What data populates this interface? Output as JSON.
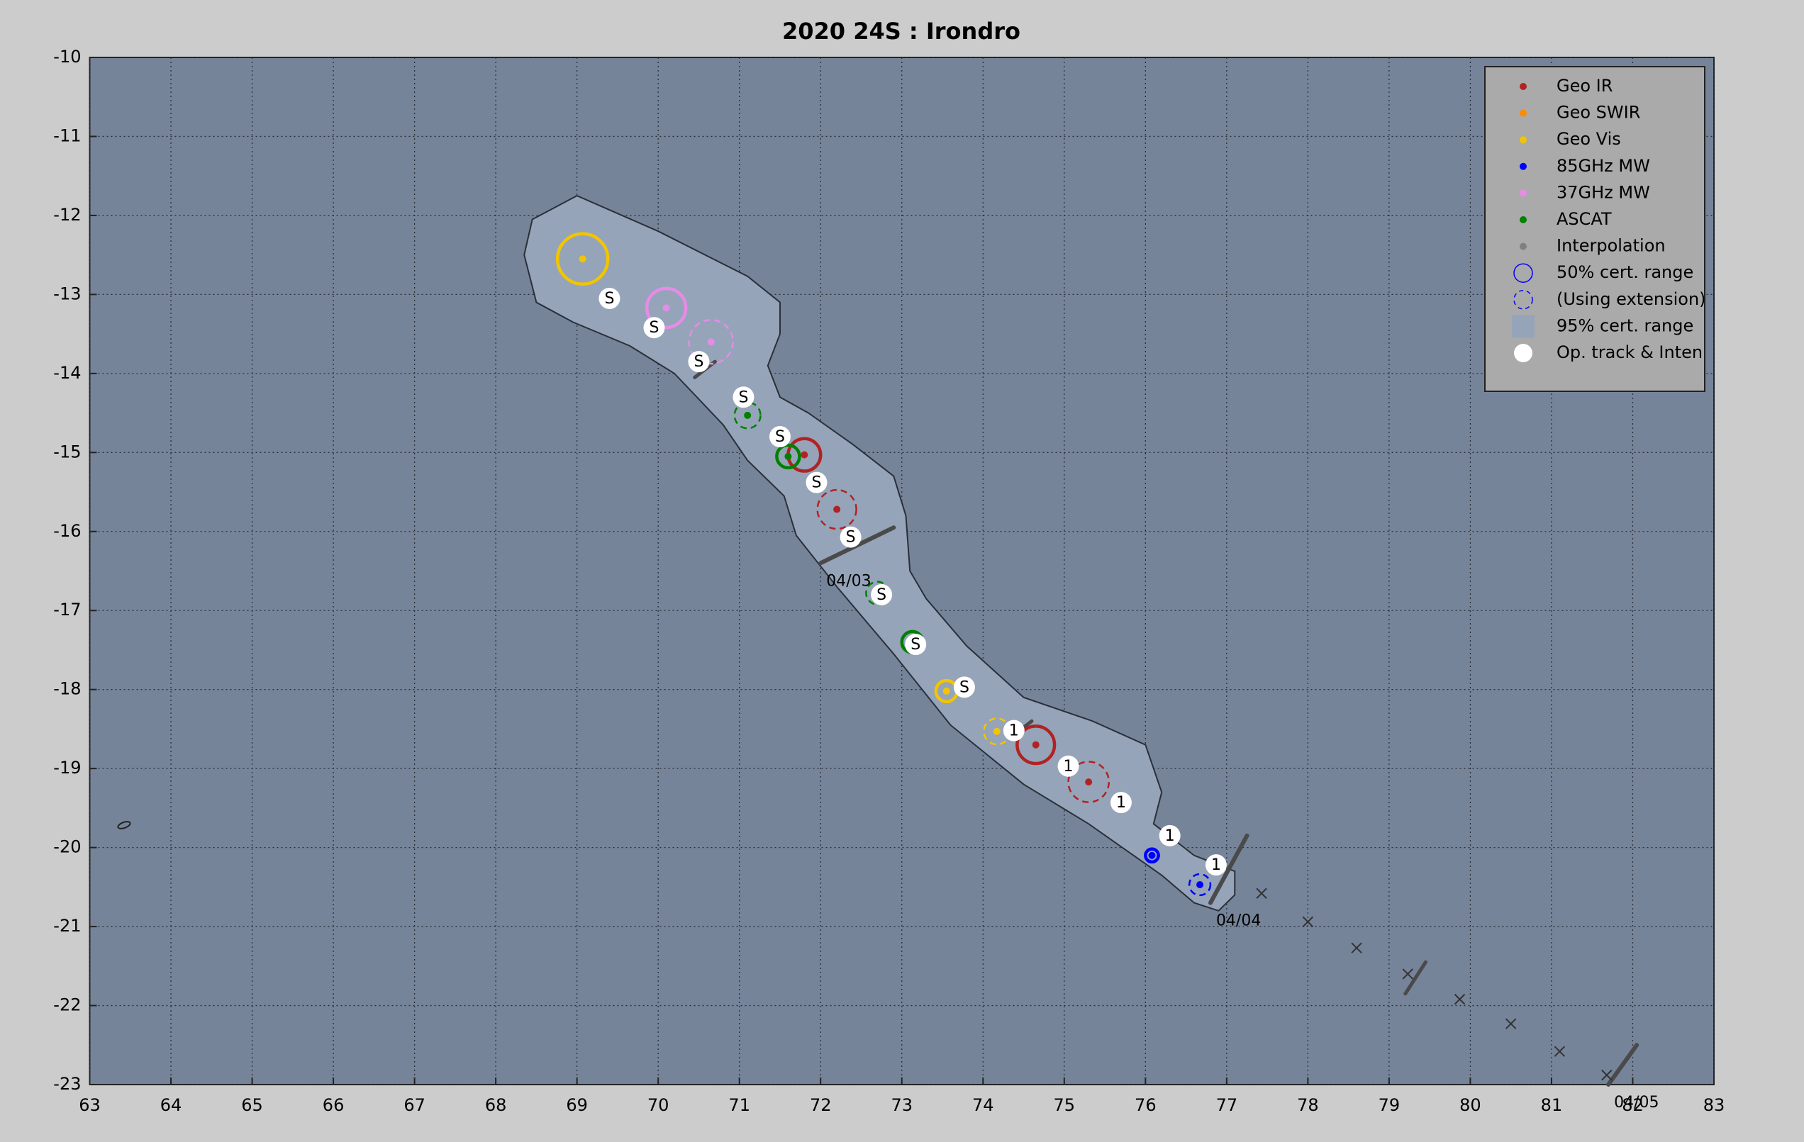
{
  "chart_data": {
    "type": "track",
    "title": "2020  24S :  Irondro",
    "xlim": [
      63,
      83
    ],
    "ylim": [
      -23,
      -10
    ],
    "xticks": [
      63,
      64,
      65,
      66,
      67,
      68,
      69,
      70,
      71,
      72,
      73,
      74,
      75,
      76,
      77,
      78,
      79,
      80,
      81,
      82,
      83
    ],
    "yticks": [
      -10,
      -11,
      -12,
      -13,
      -14,
      -15,
      -16,
      -17,
      -18,
      -19,
      -20,
      -21,
      -22,
      -23
    ],
    "grid": true,
    "legend_position": "upper right",
    "series": [
      {
        "name": "Geo IR",
        "color": "#b22222",
        "x": [
          71.8,
          72.2,
          74.65,
          75.3
        ],
        "y": [
          -15.03,
          -15.72,
          -18.7,
          -19.17
        ],
        "r": [
          0.2,
          0.24,
          0.23,
          0.25
        ],
        "dashed": [
          false,
          true,
          false,
          true
        ]
      },
      {
        "name": "Geo SWIR",
        "color": "#ff8c00",
        "x": [],
        "y": [],
        "r": [],
        "dashed": []
      },
      {
        "name": "Geo Vis",
        "color": "#f2c500",
        "x": [
          69.07,
          73.55,
          74.17
        ],
        "y": [
          -12.55,
          -18.02,
          -18.53
        ],
        "r": [
          0.31,
          0.13,
          0.16
        ],
        "dashed": [
          false,
          false,
          true
        ]
      },
      {
        "name": "85GHz MW",
        "color": "#0000ff",
        "x": [
          76.08,
          76.67
        ],
        "y": [
          -20.1,
          -20.47
        ],
        "r": [
          0.08,
          0.13
        ],
        "dashed": [
          false,
          true
        ]
      },
      {
        "name": "37GHz MW",
        "color": "#e68ce6",
        "x": [
          70.1,
          70.65
        ],
        "y": [
          -13.17,
          -13.6
        ],
        "r": [
          0.24,
          0.27
        ],
        "dashed": [
          false,
          true
        ]
      },
      {
        "name": "ASCAT",
        "color": "#008000",
        "x": [
          71.1,
          71.6,
          72.7,
          73.13
        ],
        "y": [
          -14.53,
          -15.05,
          -16.78,
          -17.4
        ],
        "r": [
          0.16,
          0.14,
          0.14,
          0.13
        ],
        "dashed": [
          true,
          false,
          true,
          false
        ]
      },
      {
        "name": "Interpolation",
        "color": "#808080",
        "x": [
          77.43,
          78.0,
          78.6,
          79.23,
          79.87,
          80.5,
          81.1,
          81.68
        ],
        "y": [
          -20.58,
          -20.94,
          -21.27,
          -21.6,
          -21.92,
          -22.23,
          -22.58,
          -22.88
        ]
      }
    ],
    "legend_extra": [
      {
        "name": "50% cert. range",
        "symbol": "ring"
      },
      {
        "name": "(Using extension)",
        "symbol": "dashed-ring"
      },
      {
        "name": "95% cert. range",
        "symbol": "square"
      },
      {
        "name": "Op. track & Inten",
        "symbol": "dot"
      }
    ],
    "op_track": {
      "x": [
        69.4,
        69.95,
        70.5,
        71.05,
        71.5,
        71.95,
        72.37,
        72.75,
        73.17,
        73.77,
        74.38,
        75.05,
        75.7,
        76.3,
        76.87
      ],
      "y": [
        -13.05,
        -13.42,
        -13.85,
        -14.3,
        -14.8,
        -15.38,
        -16.07,
        -16.8,
        -17.43,
        -17.97,
        -18.52,
        -18.97,
        -19.43,
        -19.85,
        -20.22
      ],
      "labels": [
        "S",
        "S",
        "S",
        "S",
        "S",
        "S",
        "S",
        "S",
        "S",
        "S",
        "1",
        "1",
        "1",
        "1",
        "1"
      ]
    },
    "envelope": {
      "x": [
        68.45,
        69.0,
        70.0,
        71.1,
        71.5,
        71.5,
        71.35,
        71.5,
        71.85,
        72.4,
        72.9,
        73.05,
        73.1,
        73.3,
        73.8,
        74.5,
        75.35,
        76.0,
        76.2,
        76.1,
        76.6,
        77.1,
        77.1,
        76.9,
        76.6,
        76.2,
        75.3,
        74.5,
        73.6,
        72.9,
        72.2,
        71.7,
        71.55,
        71.1,
        70.8,
        70.2,
        69.65,
        68.95,
        68.5,
        68.35
      ],
      "y": [
        -12.05,
        -11.75,
        -12.2,
        -12.77,
        -13.1,
        -13.5,
        -13.9,
        -14.3,
        -14.5,
        -14.9,
        -15.3,
        -15.8,
        -16.5,
        -16.85,
        -17.45,
        -18.1,
        -18.4,
        -18.7,
        -19.3,
        -19.7,
        -20.1,
        -20.3,
        -20.6,
        -20.8,
        -20.7,
        -20.35,
        -19.7,
        -19.2,
        -18.45,
        -17.55,
        -16.7,
        -16.05,
        -15.55,
        -15.1,
        -14.65,
        -14.0,
        -13.65,
        -13.35,
        -13.1,
        -12.5
      ]
    },
    "dates": [
      {
        "label": "04/03",
        "line": [
          72.0,
          -16.4,
          72.9,
          -15.95
        ]
      },
      {
        "label": "04/04",
        "line": [
          76.8,
          -20.7,
          77.25,
          -19.85
        ]
      },
      {
        "label": "04/05",
        "line": [
          81.7,
          -23.0,
          82.05,
          -22.5
        ]
      }
    ],
    "track_ticks": [
      [
        70.45,
        -14.05,
        70.7,
        -13.85
      ],
      [
        74.35,
        -18.6,
        74.6,
        -18.4
      ],
      [
        79.2,
        -21.85,
        79.45,
        -21.45
      ]
    ]
  }
}
